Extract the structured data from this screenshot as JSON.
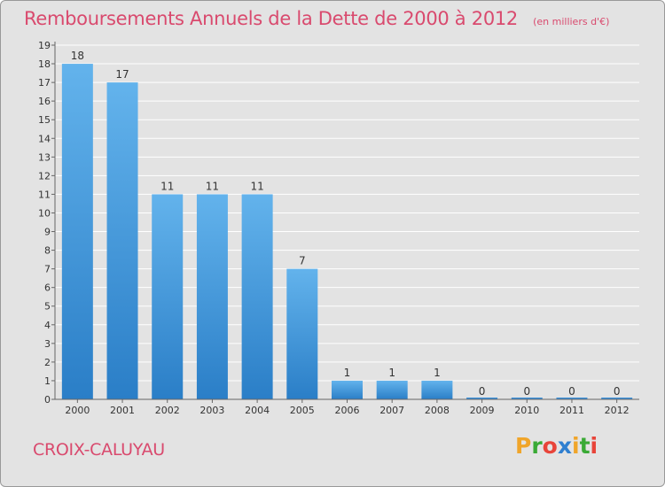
{
  "chart_data": {
    "type": "bar",
    "title": "Remboursements Annuels de la Dette de 2000 à 2012",
    "unit": "(en milliers d'€)",
    "categories": [
      "2000",
      "2001",
      "2002",
      "2003",
      "2004",
      "2005",
      "2006",
      "2007",
      "2008",
      "2009",
      "2010",
      "2011",
      "2012"
    ],
    "values": [
      18,
      17,
      11,
      11,
      11,
      7,
      1,
      1,
      1,
      0,
      0,
      0,
      0
    ],
    "ylim": [
      0,
      19
    ],
    "yticks": [
      0,
      1,
      2,
      3,
      4,
      5,
      6,
      7,
      8,
      9,
      10,
      11,
      12,
      13,
      14,
      15,
      16,
      17,
      18,
      19
    ],
    "xlabel": "",
    "ylabel": "",
    "grid": true
  },
  "city": "CROIX-CALUYAU",
  "logo": {
    "letters": [
      "P",
      "r",
      "o",
      "x",
      "i",
      "t",
      "i"
    ],
    "colors": [
      "#f0a52a",
      "#3aaa35",
      "#e8443a",
      "#2f7fd0",
      "#f0a52a",
      "#3aaa35",
      "#e8443a"
    ]
  },
  "colors": {
    "bar_light": "#63b3ec",
    "bar_dark": "#2a7ec7",
    "accent": "#d94a6e",
    "background": "#e3e3e3"
  }
}
